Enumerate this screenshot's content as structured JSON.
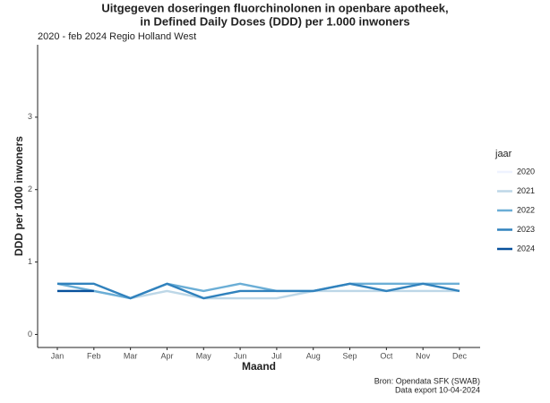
{
  "chart_data": {
    "type": "line",
    "title": [
      "Uitgegeven doseringen fluorchinolonen in openbare apotheek,",
      "in Defined Daily Doses (DDD) per 1.000 inwoners"
    ],
    "subtitle": "2020 - feb 2024 Regio Holland West",
    "x_label": "Maand",
    "y_label": "DDD per 1000 inwoners",
    "caption": [
      "Bron: Opendata SFK (SWAB)",
      "Data export 10-04-2024"
    ],
    "legend_title": "jaar",
    "categories": [
      "Jan",
      "Feb",
      "Mar",
      "Apr",
      "May",
      "Jun",
      "Jul",
      "Aug",
      "Sep",
      "Oct",
      "Nov",
      "Dec"
    ],
    "series": [
      {
        "name": "2020",
        "color": "#eff3ff",
        "values": [
          0.6,
          0.6,
          0.5,
          0.6,
          0.5,
          0.5,
          0.5,
          0.6,
          0.6,
          0.6,
          0.6,
          0.6
        ]
      },
      {
        "name": "2021",
        "color": "#bdd7e7",
        "values": [
          0.6,
          0.6,
          0.5,
          0.6,
          0.5,
          0.5,
          0.5,
          0.6,
          0.6,
          0.6,
          0.6,
          0.6
        ]
      },
      {
        "name": "2022",
        "color": "#6baed6",
        "values": [
          0.7,
          0.6,
          0.5,
          0.7,
          0.6,
          0.7,
          0.6,
          0.6,
          0.7,
          0.7,
          0.7,
          0.7
        ]
      },
      {
        "name": "2023",
        "color": "#3182bd",
        "values": [
          0.7,
          0.7,
          0.5,
          0.7,
          0.5,
          0.6,
          0.6,
          0.6,
          0.7,
          0.6,
          0.7,
          0.6
        ]
      },
      {
        "name": "2024",
        "color": "#08519c",
        "values": [
          0.6,
          0.6,
          null,
          null,
          null,
          null,
          null,
          null,
          null,
          null,
          null,
          null
        ]
      }
    ],
    "ylim": [
      -0.18,
      4
    ],
    "yticks": [
      0,
      1,
      2,
      3
    ],
    "grid": false,
    "legend_position": "right"
  }
}
